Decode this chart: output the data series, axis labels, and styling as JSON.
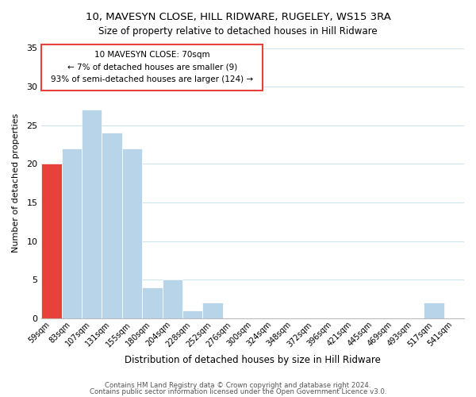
{
  "title": "10, MAVESYN CLOSE, HILL RIDWARE, RUGELEY, WS15 3RA",
  "subtitle": "Size of property relative to detached houses in Hill Ridware",
  "xlabel": "Distribution of detached houses by size in Hill Ridware",
  "ylabel": "Number of detached properties",
  "footer_line1": "Contains HM Land Registry data © Crown copyright and database right 2024.",
  "footer_line2": "Contains public sector information licensed under the Open Government Licence v3.0.",
  "bin_labels": [
    "59sqm",
    "83sqm",
    "107sqm",
    "131sqm",
    "155sqm",
    "180sqm",
    "204sqm",
    "228sqm",
    "252sqm",
    "276sqm",
    "300sqm",
    "324sqm",
    "348sqm",
    "372sqm",
    "396sqm",
    "421sqm",
    "445sqm",
    "469sqm",
    "493sqm",
    "517sqm",
    "541sqm"
  ],
  "bar_heights": [
    20,
    22,
    27,
    24,
    22,
    4,
    5,
    1,
    2,
    0,
    0,
    0,
    0,
    0,
    0,
    0,
    0,
    0,
    0,
    2,
    0
  ],
  "bar_color": "#b8d4e8",
  "highlight_bar_index": 0,
  "highlight_bar_color": "#e8403a",
  "ylim": [
    0,
    35
  ],
  "yticks": [
    0,
    5,
    10,
    15,
    20,
    25,
    30,
    35
  ],
  "annotation_title": "10 MAVESYN CLOSE: 70sqm",
  "annotation_line2": "← 7% of detached houses are smaller (9)",
  "annotation_line3": "93% of semi-detached houses are larger (124) →",
  "grid_color": "#d0e4f0",
  "title_fontsize": 9.5,
  "subtitle_fontsize": 8.5
}
